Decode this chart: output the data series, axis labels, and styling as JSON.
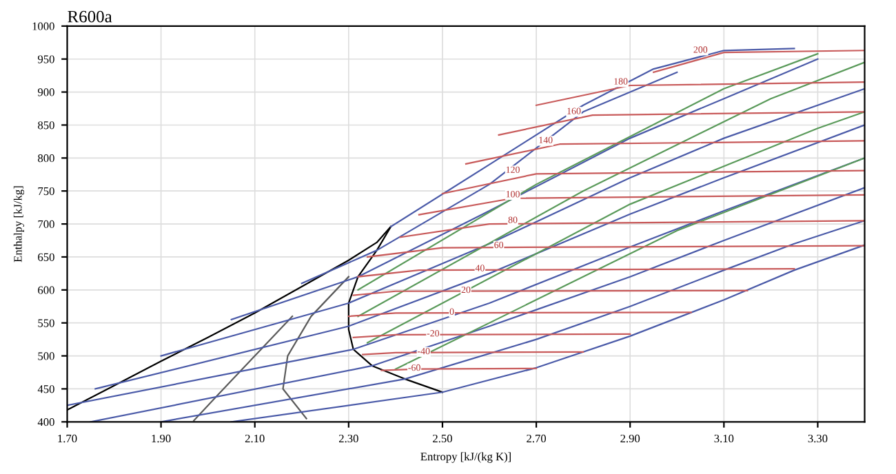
{
  "chart_data": {
    "type": "line",
    "title": "R600a",
    "xlabel": "Entropy [kJ/(kg K)]",
    "ylabel": "Enthalpy [kJ/kg]",
    "xlim": [
      1.7,
      3.4
    ],
    "xticks": [
      {
        "value": 1.7,
        "label": "1.70"
      },
      {
        "value": 1.9,
        "label": "1.90"
      },
      {
        "value": 2.1,
        "label": "2.10"
      },
      {
        "value": 2.3,
        "label": "2.30"
      },
      {
        "value": 2.5,
        "label": "2.50"
      },
      {
        "value": 2.7,
        "label": "2.70"
      },
      {
        "value": 2.9,
        "label": "2.90"
      },
      {
        "value": 3.1,
        "label": "3.10"
      },
      {
        "value": 3.3,
        "label": "3.30"
      }
    ],
    "ylim": [
      400,
      1000
    ],
    "yticks": [
      400,
      450,
      500,
      550,
      600,
      650,
      700,
      750,
      800,
      850,
      900,
      950,
      1000
    ],
    "grid": true,
    "legend": false,
    "marker": "none",
    "line_style": "solid",
    "series": [
      {
        "color": "#000000",
        "x": [
          1.7,
          1.8,
          1.9,
          2.0,
          2.1,
          2.2,
          2.3,
          2.36,
          2.39
        ],
        "values": [
          418,
          455,
          492,
          528,
          565,
          605,
          645,
          672,
          696
        ]
      },
      {
        "color": "#000000",
        "x": [
          2.39,
          2.36,
          2.32,
          2.3,
          2.3,
          2.31,
          2.35,
          2.42,
          2.5
        ],
        "values": [
          696,
          660,
          620,
          580,
          540,
          510,
          485,
          465,
          445
        ]
      },
      {
        "color": "#5a5a5a",
        "x": [
          2.21,
          2.16,
          2.17,
          2.22,
          2.3
        ],
        "values": [
          405,
          450,
          500,
          560,
          620
        ]
      },
      {
        "color": "#5a5a5a",
        "x": [
          1.97,
          2.02,
          2.1,
          2.18
        ],
        "values": [
          402,
          440,
          500,
          560
        ]
      },
      {
        "color": "#4a5aa8",
        "x": [
          2.05,
          2.5,
          2.7,
          2.9,
          3.1,
          3.25,
          3.4
        ],
        "values": [
          400,
          445,
          482,
          530,
          585,
          630,
          668
        ]
      },
      {
        "color": "#4a5aa8",
        "x": [
          1.9,
          2.42,
          2.7,
          2.9,
          3.1,
          3.25,
          3.4
        ],
        "values": [
          400,
          465,
          525,
          575,
          630,
          670,
          705
        ]
      },
      {
        "color": "#4a5aa8",
        "x": [
          1.75,
          2.35,
          2.6,
          2.9,
          3.1,
          3.4
        ],
        "values": [
          400,
          485,
          545,
          620,
          675,
          755
        ]
      },
      {
        "color": "#4a5aa8",
        "x": [
          1.7,
          2.31,
          2.6,
          2.9,
          3.1,
          3.4
        ],
        "values": [
          425,
          510,
          580,
          665,
          720,
          800
        ]
      },
      {
        "color": "#4a5aa8",
        "x": [
          1.76,
          2.3,
          2.6,
          2.9,
          3.1,
          3.4
        ],
        "values": [
          450,
          545,
          625,
          715,
          770,
          850
        ]
      },
      {
        "color": "#4a5aa8",
        "x": [
          1.9,
          2.3,
          2.6,
          2.9,
          3.1,
          3.4
        ],
        "values": [
          500,
          580,
          670,
          770,
          830,
          905
        ]
      },
      {
        "color": "#4a5aa8",
        "x": [
          2.05,
          2.32,
          2.6,
          2.9,
          3.1,
          3.3
        ],
        "values": [
          555,
          620,
          720,
          830,
          890,
          950
        ]
      },
      {
        "color": "#4a5aa8",
        "x": [
          2.2,
          2.36,
          2.6,
          2.8,
          3.0
        ],
        "values": [
          610,
          660,
          760,
          870,
          930
        ]
      },
      {
        "color": "#4a5aa8",
        "x": [
          2.39,
          2.6,
          2.8,
          2.95,
          3.1,
          3.25
        ],
        "values": [
          696,
          790,
          880,
          935,
          963,
          966
        ]
      },
      {
        "color": "#5a9a5a",
        "x": [
          2.32,
          2.7,
          3.1,
          3.3
        ],
        "values": [
          600,
          760,
          905,
          958
        ]
      },
      {
        "color": "#5a9a5a",
        "x": [
          2.32,
          2.8,
          3.2,
          3.4
        ],
        "values": [
          560,
          750,
          890,
          945
        ]
      },
      {
        "color": "#5a9a5a",
        "x": [
          2.34,
          2.9,
          3.3,
          3.4
        ],
        "values": [
          520,
          730,
          845,
          870
        ]
      },
      {
        "color": "#5a9a5a",
        "x": [
          2.4,
          3.0,
          3.4
        ],
        "values": [
          480,
          690,
          800
        ]
      },
      {
        "color": "#c85a5a",
        "x": [
          2.95,
          3.1,
          3.4
        ],
        "values": [
          930,
          960,
          963
        ]
      },
      {
        "color": "#c85a5a",
        "x": [
          2.7,
          2.9,
          3.4
        ],
        "values": [
          880,
          910,
          915
        ]
      },
      {
        "color": "#c85a5a",
        "x": [
          2.62,
          2.82,
          3.4
        ],
        "values": [
          835,
          865,
          870
        ]
      },
      {
        "color": "#c85a5a",
        "x": [
          2.55,
          2.75,
          3.4
        ],
        "values": [
          791,
          821,
          826
        ]
      },
      {
        "color": "#c85a5a",
        "x": [
          2.5,
          2.7,
          3.4
        ],
        "values": [
          746,
          776,
          781
        ]
      },
      {
        "color": "#c85a5a",
        "x": [
          2.45,
          2.65,
          3.4
        ],
        "values": [
          714,
          739,
          744
        ]
      },
      {
        "color": "#c85a5a",
        "x": [
          2.41,
          2.6,
          3.4
        ],
        "values": [
          680,
          700,
          705
        ]
      },
      {
        "color": "#c85a5a",
        "x": [
          2.34,
          2.5,
          3.4
        ],
        "values": [
          650,
          664,
          667
        ]
      },
      {
        "color": "#c85a5a",
        "x": [
          2.32,
          2.45,
          3.25
        ],
        "values": [
          620,
          630,
          632
        ]
      },
      {
        "color": "#c85a5a",
        "x": [
          2.31,
          2.4,
          3.15
        ],
        "values": [
          592,
          598,
          599
        ]
      },
      {
        "color": "#c85a5a",
        "x": [
          2.3,
          2.4,
          3.03
        ],
        "values": [
          560,
          565,
          566
        ]
      },
      {
        "color": "#c85a5a",
        "x": [
          2.31,
          2.4,
          2.9
        ],
        "values": [
          528,
          532,
          533
        ]
      },
      {
        "color": "#c85a5a",
        "x": [
          2.33,
          2.4,
          2.8
        ],
        "values": [
          502,
          505,
          506
        ]
      },
      {
        "color": "#c85a5a",
        "x": [
          2.37,
          2.45,
          2.7
        ],
        "values": [
          478,
          480,
          481
        ]
      }
    ],
    "annotations": [
      {
        "text": "200",
        "x": 3.05,
        "y": 963
      },
      {
        "text": "180",
        "x": 2.88,
        "y": 915
      },
      {
        "text": "160",
        "x": 2.78,
        "y": 870
      },
      {
        "text": "140",
        "x": 2.72,
        "y": 826
      },
      {
        "text": "120",
        "x": 2.65,
        "y": 781
      },
      {
        "text": "100",
        "x": 2.65,
        "y": 744
      },
      {
        "text": "80",
        "x": 2.65,
        "y": 705
      },
      {
        "text": "60",
        "x": 2.62,
        "y": 667
      },
      {
        "text": "40",
        "x": 2.58,
        "y": 632
      },
      {
        "text": "20",
        "x": 2.55,
        "y": 599
      },
      {
        "text": "0",
        "x": 2.52,
        "y": 566
      },
      {
        "text": "-20",
        "x": 2.48,
        "y": 533
      },
      {
        "text": "-40",
        "x": 2.46,
        "y": 506
      },
      {
        "text": "-60",
        "x": 2.44,
        "y": 481
      }
    ]
  }
}
